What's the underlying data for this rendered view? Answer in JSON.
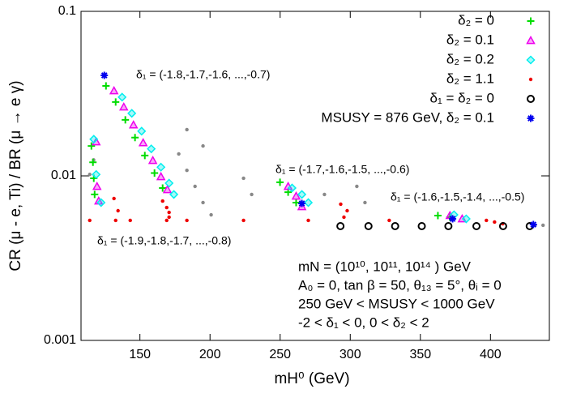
{
  "chart_data": {
    "type": "scatter",
    "xlabel": "mH⁰ (GeV)",
    "ylabel": "CR (μ - e, Ti) / BR (μ → e γ)",
    "xlim": [
      108,
      442
    ],
    "xticks": [
      150,
      200,
      250,
      300,
      350,
      400
    ],
    "ylim": [
      0.001,
      0.1
    ],
    "yticks": [
      0.001,
      0.01,
      0.1
    ],
    "ylog": true,
    "legend": "top-right",
    "annotations": [
      "δ₁ = (-1.8,-1.7,-1.6, ...,-0.7)",
      "δ₁ = (-1.7,-1.6,-1.5, ...,-0.6)",
      "δ₁ = (-1.6,-1.5,-1.4, ...,-0.5)",
      "δ₁ = (-1.9,-1.8,-1.7, ...,-0.8)"
    ],
    "info": [
      "mN = (10¹⁰, 10¹¹, 10¹⁴ ) GeV",
      "A₀ = 0, tan β = 50, θ₁₃ = 5°, θᵢ = 0",
      "250 GeV < MSUSY < 1000 GeV",
      "-2 < δ₁ < 0, 0 < δ₂ < 2"
    ],
    "series": [
      {
        "color": "#888888",
        "marker": "dot",
        "x": [
          177.7,
          183.5,
          189.3,
          195,
          200.8,
          183.5,
          195,
          223.9,
          229.7,
          304.7,
          310.5,
          281.6,
          431.8,
          437.5,
          114.2,
          117
        ],
        "values": [
          0.0136,
          0.0108,
          0.00863,
          0.00688,
          0.0058,
          0.0191,
          0.0152,
          0.00967,
          0.00771,
          0.00863,
          0.00688,
          0.00771,
          0.00501,
          0.00501,
          0.0102,
          0.0125
        ]
      },
      {
        "name": "δ₂ = 0",
        "color": "#00dd00",
        "marker": "plus",
        "x": [
          125.8,
          132.7,
          139.6,
          146.5,
          153.5,
          160.4,
          166.2,
          115.4,
          116.5,
          117.1,
          117.7,
          249.9,
          255.7,
          261.4,
          362.5,
          371.1
        ],
        "values": [
          0.0352,
          0.0281,
          0.0219,
          0.0171,
          0.0133,
          0.0104,
          0.00844,
          0.0152,
          0.0121,
          0.00967,
          0.00771,
          0.00914,
          0.00796,
          0.00688,
          0.00574,
          0.00561
        ]
      },
      {
        "name": "δ₂ = 0.1",
        "color": "#ee00ee",
        "marker": "triangle",
        "x": [
          131.5,
          138.5,
          145.4,
          152.3,
          159.2,
          165,
          169.6,
          118.8,
          119.4,
          120.6,
          255.7,
          261.4,
          265.5,
          371.1,
          379.8
        ],
        "values": [
          0.0329,
          0.0262,
          0.0204,
          0.0159,
          0.0124,
          0.00989,
          0.00824,
          0.0161,
          0.00863,
          0.00703,
          0.00863,
          0.00753,
          0.0065,
          0.00574,
          0.00548
        ]
      },
      {
        "name": "δ₂ = 0.2",
        "color": "#00eeee",
        "marker": "diamond",
        "x": [
          137.3,
          144.2,
          151.2,
          158.1,
          165,
          170.8,
          174.2,
          117.1,
          118.8,
          122.3,
          258.5,
          265.5,
          270.1,
          374,
          382.7
        ],
        "values": [
          0.0301,
          0.024,
          0.0187,
          0.0146,
          0.0113,
          0.00903,
          0.00771,
          0.0167,
          0.0102,
          0.00688,
          0.00844,
          0.00771,
          0.00688,
          0.0058,
          0.00548
        ]
      },
      {
        "name": "δ₂ = 1.1",
        "color": "#ee0000",
        "marker": "dot",
        "x": [
          166.2,
          169.1,
          170.8,
          170.8,
          169.1,
          131.5,
          134.4,
          132.7,
          293.2,
          297.8,
          295.5,
          397.1,
          402.9,
          408.7,
          114.2,
          143.1,
          183.5,
          223.9,
          270.1,
          327.8
        ],
        "values": [
          0.00703,
          0.00642,
          0.006,
          0.00561,
          0.00536,
          0.00728,
          0.00614,
          0.00536,
          0.00673,
          0.00614,
          0.00561,
          0.00536,
          0.00524,
          0.00512,
          0.00536,
          0.00536,
          0.00536,
          0.00536,
          0.00536,
          0.00536
        ]
      },
      {
        "name": "δ₁ = δ₂ = 0",
        "color": "#000000",
        "marker": "circle",
        "x": [
          293,
          313,
          332,
          351,
          370,
          390,
          409,
          428
        ],
        "values": [
          0.00495,
          0.00495,
          0.00495,
          0.00495,
          0.00495,
          0.00495,
          0.00495,
          0.00495
        ]
      },
      {
        "name": "MSUSY = 876 GeV, δ₂ = 0.1",
        "color": "#0000ee",
        "marker": "star",
        "x": [
          124.6,
          265.5,
          373,
          430.6
        ],
        "values": [
          0.0408,
          0.0068,
          0.00548,
          0.00506
        ]
      }
    ]
  }
}
